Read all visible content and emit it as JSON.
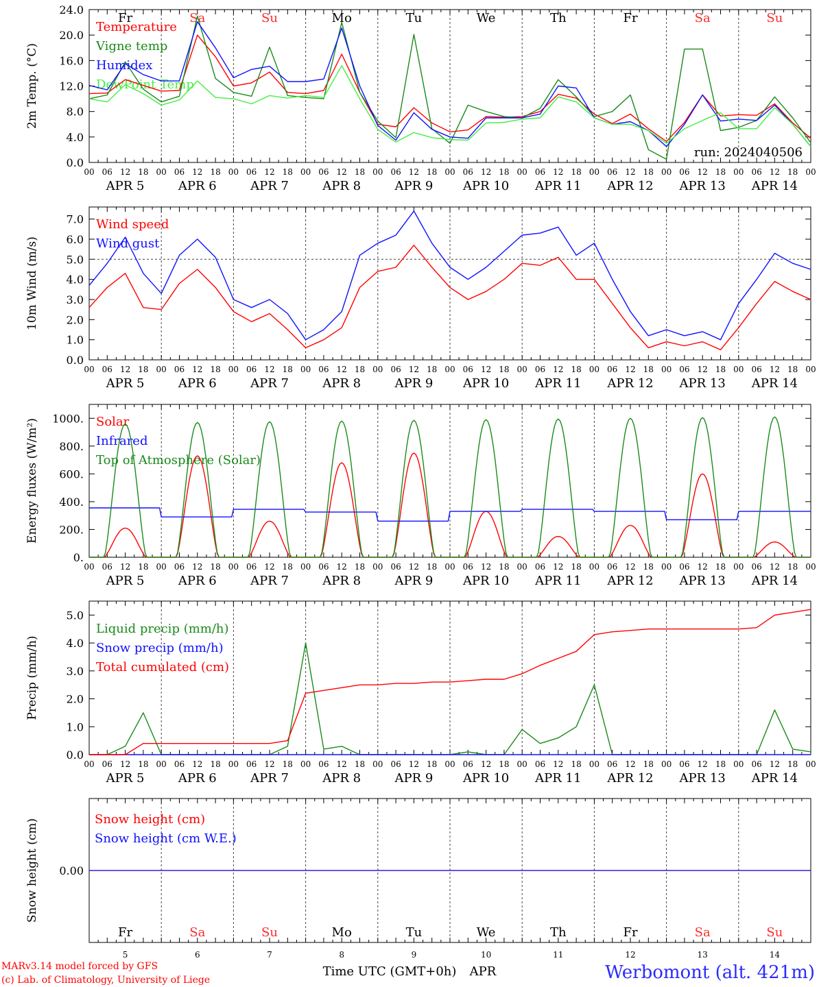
{
  "footer": {
    "model": "MARv3.14 model forced by GFS",
    "lab": "(c) Lab. of Climatology, University of Liege",
    "time_axis": "Time UTC (GMT+0h)",
    "month": "APR",
    "station": "Werbomont (alt. 421m)"
  },
  "axis": {
    "hour_labels": [
      "00",
      "06",
      "12",
      "18"
    ],
    "date_labels": [
      "APR  5",
      "APR  6",
      "APR  7",
      "APR  8",
      "APR  9",
      "APR 10",
      "APR 11",
      "APR 12",
      "APR 13",
      "APR 14"
    ],
    "day_numbers": [
      "5",
      "6",
      "7",
      "8",
      "9",
      "10",
      "11",
      "12",
      "13",
      "14"
    ],
    "weekdays": [
      "Fr",
      "Sa",
      "Su",
      "Mo",
      "Tu",
      "We",
      "Th",
      "Fr",
      "Sa",
      "Su"
    ],
    "weekend_color": "#ff2a2a",
    "weekday_color": "#000000",
    "x_range_days": [
      0,
      10
    ]
  },
  "chart_data": [
    {
      "type": "line",
      "ylabel": "2m Temp. (°C)",
      "ylim": [
        0,
        24
      ],
      "yticks": [
        "0.0",
        "4.0",
        "8.0",
        "12.0",
        "16.0",
        "20.0",
        "24.0"
      ],
      "annotation": "run: 2024040506",
      "x": [
        0,
        0.25,
        0.5,
        0.75,
        1,
        1.25,
        1.5,
        1.75,
        2,
        2.25,
        2.5,
        2.75,
        3,
        3.25,
        3.5,
        3.75,
        4,
        4.25,
        4.5,
        4.75,
        5,
        5.25,
        5.5,
        5.75,
        6,
        6.25,
        6.5,
        6.75,
        7,
        7.25,
        7.5,
        7.75,
        8,
        8.25,
        8.5,
        8.75,
        9,
        9.25,
        9.5,
        9.75,
        10
      ],
      "series": [
        {
          "name": "Temperature",
          "color": "#ff0000",
          "values": [
            10.8,
            10.9,
            13.0,
            12.1,
            11.2,
            11.3,
            20.0,
            16.6,
            12.0,
            12.5,
            14.2,
            11.0,
            10.8,
            11.3,
            17.0,
            11.0,
            6.0,
            5.6,
            8.6,
            6.2,
            4.8,
            5.1,
            7.2,
            7.1,
            7.2,
            8.0,
            10.7,
            10.1,
            7.6,
            6.1,
            7.6,
            5.3,
            3.3,
            6.3,
            10.6,
            7.3,
            7.5,
            7.4,
            9.2,
            6.2,
            3.8
          ]
        },
        {
          "name": "Vigne temp",
          "color": "#1a8a1a",
          "values": [
            10.0,
            10.6,
            15.8,
            11.5,
            9.5,
            10.4,
            23.0,
            13.2,
            11.0,
            10.4,
            18.1,
            10.5,
            10.2,
            10.0,
            22.0,
            11.0,
            6.5,
            3.9,
            20.1,
            5.3,
            3.0,
            9.0,
            8.0,
            7.2,
            7.0,
            8.5,
            13.0,
            10.3,
            7.2,
            8.0,
            10.6,
            2.0,
            0.5,
            17.8,
            17.8,
            5.0,
            5.5,
            6.6,
            10.3,
            7.0,
            3.1
          ]
        },
        {
          "name": "Humidex",
          "color": "#1010ff",
          "values": [
            12.1,
            11.4,
            15.5,
            13.8,
            12.8,
            12.8,
            22.1,
            18.0,
            13.3,
            14.6,
            15.1,
            12.7,
            12.7,
            13.1,
            21.1,
            12.0,
            5.8,
            3.5,
            7.8,
            5.2,
            4.0,
            3.8,
            7.0,
            7.0,
            7.0,
            7.6,
            12.0,
            11.7,
            7.0,
            6.0,
            6.4,
            5.0,
            2.5,
            6.0,
            10.6,
            6.5,
            6.8,
            6.6,
            9.0,
            6.0,
            2.5
          ]
        },
        {
          "name": "DewPoint Temp",
          "color": "#44ee44",
          "values": [
            10.0,
            9.5,
            12.2,
            10.8,
            9.0,
            9.8,
            12.8,
            10.2,
            10.0,
            9.2,
            10.5,
            10.1,
            10.5,
            10.2,
            15.2,
            10.0,
            5.2,
            3.2,
            4.7,
            3.9,
            3.6,
            3.5,
            6.2,
            6.3,
            6.8,
            7.0,
            10.3,
            9.5,
            7.0,
            6.0,
            6.0,
            5.0,
            3.0,
            5.3,
            6.6,
            7.8,
            5.3,
            5.3,
            8.6,
            6.0,
            2.5
          ]
        }
      ]
    },
    {
      "type": "line",
      "ylabel": "10m Wind (m/s)",
      "ylim": [
        0,
        7.6
      ],
      "yticks": [
        "0.0",
        "1.0",
        "2.0",
        "3.0",
        "4.0",
        "5.0",
        "6.0",
        "7.0"
      ],
      "reference_line": 5.0,
      "x": [
        0,
        0.25,
        0.5,
        0.75,
        1,
        1.25,
        1.5,
        1.75,
        2,
        2.25,
        2.5,
        2.75,
        3,
        3.25,
        3.5,
        3.75,
        4,
        4.25,
        4.5,
        4.75,
        5,
        5.25,
        5.5,
        5.75,
        6,
        6.25,
        6.5,
        6.75,
        7,
        7.25,
        7.5,
        7.75,
        8,
        8.25,
        8.5,
        8.75,
        9,
        9.25,
        9.5,
        9.75,
        10
      ],
      "series": [
        {
          "name": "Wind speed",
          "color": "#ff0000",
          "values": [
            2.6,
            3.6,
            4.3,
            2.6,
            2.5,
            3.8,
            4.5,
            3.6,
            2.4,
            1.9,
            2.3,
            1.5,
            0.6,
            1.0,
            1.6,
            3.6,
            4.4,
            4.6,
            5.7,
            4.6,
            3.6,
            3.0,
            3.4,
            4.0,
            4.8,
            4.7,
            5.1,
            4.0,
            4.0,
            2.8,
            1.6,
            0.6,
            0.9,
            0.7,
            0.9,
            0.5,
            1.6,
            2.8,
            3.9,
            3.4,
            3.0
          ]
        },
        {
          "name": "Wind gust",
          "color": "#1010ff",
          "values": [
            3.7,
            4.8,
            6.1,
            4.3,
            3.3,
            5.2,
            6.0,
            5.1,
            3.0,
            2.6,
            3.0,
            2.3,
            1.0,
            1.5,
            2.4,
            5.2,
            5.8,
            6.2,
            7.4,
            5.8,
            4.6,
            4.0,
            4.6,
            5.4,
            6.2,
            6.3,
            6.6,
            5.2,
            5.8,
            4.0,
            2.4,
            1.2,
            1.5,
            1.2,
            1.4,
            1.0,
            2.8,
            4.0,
            5.3,
            4.8,
            4.5
          ]
        }
      ]
    },
    {
      "type": "line",
      "ylabel": "Energy fluxes (W/m²)",
      "ylim": [
        0,
        1100
      ],
      "yticks": [
        "0.",
        "200.",
        "400.",
        "600.",
        "800.",
        "1000."
      ],
      "daylight_hours": [
        5.0,
        19.0
      ],
      "series": [
        {
          "name": "Solar",
          "color": "#ff0000",
          "daily_peaks": [
            210,
            730,
            260,
            680,
            750,
            330,
            150,
            230,
            600,
            110
          ]
        },
        {
          "name": "Infrared",
          "color": "#1010ff",
          "daily_mean": [
            355,
            290,
            345,
            325,
            260,
            330,
            345,
            330,
            270,
            330
          ]
        },
        {
          "name": "Top of Atmosphere (Solar)",
          "color": "#1a8a1a",
          "daily_peaks": [
            960,
            970,
            975,
            980,
            985,
            990,
            995,
            1000,
            1005,
            1010
          ]
        }
      ]
    },
    {
      "type": "line",
      "ylabel": "Precip (mm/h)",
      "ylim": [
        0,
        5.5
      ],
      "yticks": [
        "0.0",
        "1.0",
        "2.0",
        "3.0",
        "4.0",
        "5.0"
      ],
      "x": [
        0,
        0.25,
        0.5,
        0.75,
        1,
        1.25,
        1.5,
        1.75,
        2,
        2.25,
        2.5,
        2.75,
        3,
        3.25,
        3.5,
        3.75,
        4,
        4.25,
        4.5,
        4.75,
        5,
        5.25,
        5.5,
        5.75,
        6,
        6.25,
        6.5,
        6.75,
        7,
        7.25,
        7.5,
        7.75,
        8,
        8.25,
        8.5,
        8.75,
        9,
        9.25,
        9.5,
        9.75,
        10
      ],
      "series": [
        {
          "name": "Liquid precip (mm/h)",
          "color": "#1a8a1a",
          "values": [
            0,
            0,
            0.3,
            1.5,
            0,
            0,
            0,
            0,
            0,
            0,
            0,
            0.3,
            4.0,
            0.2,
            0.3,
            0,
            0,
            0,
            0,
            0,
            0,
            0.1,
            0,
            0,
            0.9,
            0.4,
            0.6,
            1.0,
            2.5,
            0,
            0,
            0,
            0,
            0,
            0,
            0,
            0,
            0,
            1.6,
            0.2,
            0.1
          ]
        },
        {
          "name": "Snow precip (mm/h)",
          "color": "#1010ff",
          "values": [
            0,
            0,
            0,
            0,
            0,
            0,
            0,
            0,
            0,
            0,
            0,
            0,
            0,
            0,
            0,
            0,
            0,
            0,
            0,
            0,
            0,
            0,
            0,
            0,
            0,
            0,
            0,
            0,
            0,
            0,
            0,
            0,
            0,
            0,
            0,
            0,
            0,
            0,
            0,
            0,
            0
          ]
        },
        {
          "name": "Total cumulated (cm)",
          "color": "#ff0000",
          "values": [
            0,
            0,
            0,
            0.4,
            0.4,
            0.4,
            0.4,
            0.4,
            0.4,
            0.4,
            0.4,
            0.5,
            2.2,
            2.3,
            2.4,
            2.5,
            2.5,
            2.55,
            2.55,
            2.6,
            2.6,
            2.65,
            2.7,
            2.7,
            2.9,
            3.2,
            3.45,
            3.7,
            4.3,
            4.4,
            4.45,
            4.5,
            4.5,
            4.5,
            4.5,
            4.5,
            4.5,
            4.55,
            5.0,
            5.1,
            5.2
          ]
        }
      ]
    },
    {
      "type": "line",
      "ylabel": "Snow height (cm)",
      "ylim": [
        -1,
        1
      ],
      "yticks": [
        "0.00"
      ],
      "x": [
        0,
        10
      ],
      "series": [
        {
          "name": "Snow height (cm)",
          "color": "#ff0000",
          "values": [
            0,
            0
          ]
        },
        {
          "name": "Snow height (cm W.E.)",
          "color": "#1010ff",
          "values": [
            0,
            0
          ]
        }
      ]
    }
  ]
}
